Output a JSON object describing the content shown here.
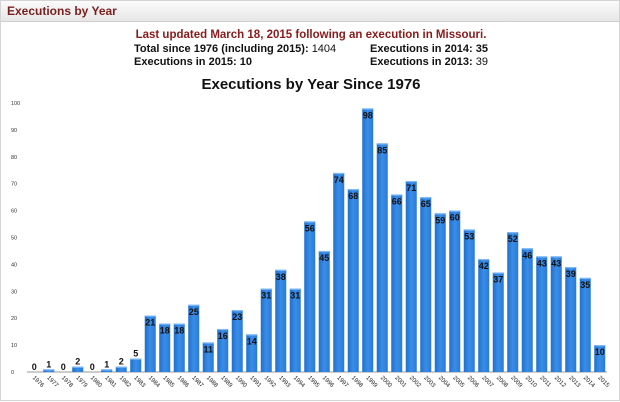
{
  "header": {
    "title": "Executions by Year"
  },
  "summary": {
    "updated": "Last updated March 18, 2015 following an execution in Missouri.",
    "total_label": "Total since 1976 (including 2015):",
    "total_value": "1404",
    "y2014_label": "Executions in 2014:",
    "y2014_value": "35",
    "y2015_label": "Executions in 2015:",
    "y2015_value": "10",
    "y2013_label": "Executions in 2013:",
    "y2013_value": "39"
  },
  "chart_data": {
    "type": "bar",
    "title": "Executions by Year Since 1976",
    "xlabel": "",
    "ylabel": "",
    "ylim": [
      0,
      100
    ],
    "yticks": [
      0,
      10,
      20,
      30,
      40,
      50,
      60,
      70,
      80,
      90,
      100
    ],
    "grid": false,
    "bar_color": "#3a8ee6",
    "categories": [
      "1976",
      "1977",
      "1978",
      "1979",
      "1980",
      "1981",
      "1982",
      "1983",
      "1984",
      "1985",
      "1986",
      "1987",
      "1988",
      "1989",
      "1990",
      "1991",
      "1992",
      "1993",
      "1994",
      "1995",
      "1996",
      "1997",
      "1998",
      "1999",
      "2000",
      "2001",
      "2002",
      "2003",
      "2004",
      "2005",
      "2006",
      "2007",
      "2008",
      "2009",
      "2010",
      "2011",
      "2012",
      "2013",
      "2014",
      "2015"
    ],
    "values": [
      0,
      1,
      0,
      2,
      0,
      1,
      2,
      5,
      21,
      18,
      18,
      25,
      11,
      16,
      23,
      14,
      31,
      38,
      31,
      56,
      45,
      74,
      68,
      98,
      85,
      66,
      71,
      65,
      59,
      60,
      53,
      42,
      37,
      52,
      46,
      43,
      43,
      39,
      35,
      10
    ]
  }
}
